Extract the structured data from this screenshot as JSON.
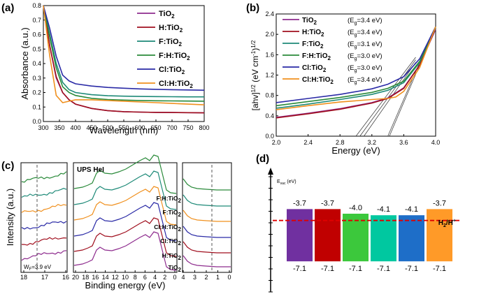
{
  "colors": {
    "TiO2": "#8e2c8e",
    "H_TiO2": "#a00f1e",
    "F_TiO2": "#1e8a78",
    "FH_TiO2": "#2a8a3a",
    "Cl_TiO2": "#2a2aa6",
    "ClH_TiO2": "#f0901e",
    "bar_purple": "#7030a0",
    "bar_red": "#c00000",
    "bar_green": "#3cc83c",
    "bar_teal": "#00c8a0",
    "bar_blue": "#1e6ec8",
    "bar_orange": "#ff9a28",
    "redox_line": "#e00000"
  },
  "panel_labels": {
    "a": "(a)",
    "b": "(b)",
    "c": "(c)",
    "d": "(d)"
  },
  "panel_a": {
    "chart_data": {
      "type": "line",
      "xlabel": "Wavelength (nm)",
      "ylabel": "Absorbance (a.u.)",
      "xlim": [
        300,
        800
      ],
      "ylim": [
        0,
        0.8
      ],
      "x_ticks": [
        "300",
        "350",
        "400",
        "450",
        "500",
        "550",
        "600",
        "650",
        "700",
        "750",
        "800"
      ],
      "y_ticks": [
        "0.0",
        "0.1",
        "0.2",
        "0.3",
        "0.4",
        "0.5",
        "0.6",
        "0.7",
        "0.8"
      ],
      "series": [
        {
          "name": "TiO2",
          "label_base": "TiO",
          "label_sub": "2",
          "color_key": "TiO2",
          "x": [
            300,
            320,
            340,
            360,
            380,
            400,
            450,
            500,
            550,
            600,
            650,
            700,
            750,
            800
          ],
          "y": [
            0.8,
            0.52,
            0.3,
            0.2,
            0.15,
            0.12,
            0.09,
            0.075,
            0.068,
            0.065,
            0.063,
            0.062,
            0.061,
            0.06
          ]
        },
        {
          "name": "H:TiO2",
          "label_base": "H:TiO",
          "label_sub": "2",
          "color_key": "H_TiO2",
          "x": [
            300,
            320,
            340,
            360,
            380,
            400,
            450,
            500,
            550,
            600,
            650,
            700,
            750,
            800
          ],
          "y": [
            0.8,
            0.52,
            0.31,
            0.2,
            0.15,
            0.12,
            0.09,
            0.075,
            0.068,
            0.065,
            0.063,
            0.062,
            0.061,
            0.06
          ]
        },
        {
          "name": "F:TiO2",
          "label_base": "F:TiO",
          "label_sub": "2",
          "color_key": "F_TiO2",
          "x": [
            300,
            320,
            340,
            360,
            380,
            400,
            450,
            500,
            550,
            600,
            650,
            700,
            750,
            800
          ],
          "y": [
            0.8,
            0.6,
            0.4,
            0.27,
            0.22,
            0.2,
            0.185,
            0.178,
            0.175,
            0.173,
            0.172,
            0.171,
            0.17,
            0.17
          ]
        },
        {
          "name": "F:H:TiO2",
          "label_base": "F:H:TiO",
          "label_sub": "2",
          "color_key": "FH_TiO2",
          "x": [
            300,
            320,
            340,
            360,
            380,
            400,
            450,
            500,
            550,
            600,
            650,
            700,
            750,
            800
          ],
          "y": [
            0.8,
            0.58,
            0.37,
            0.24,
            0.2,
            0.18,
            0.16,
            0.152,
            0.148,
            0.145,
            0.143,
            0.142,
            0.141,
            0.14
          ]
        },
        {
          "name": "Cl:TiO2",
          "label_base": "Cl:TiO",
          "label_sub": "2",
          "color_key": "Cl_TiO2",
          "x": [
            300,
            320,
            340,
            360,
            380,
            400,
            450,
            500,
            550,
            600,
            650,
            700,
            750,
            800
          ],
          "y": [
            0.8,
            0.64,
            0.45,
            0.32,
            0.28,
            0.26,
            0.245,
            0.235,
            0.23,
            0.225,
            0.222,
            0.22,
            0.218,
            0.216
          ]
        },
        {
          "name": "Cl:H:TiO2",
          "label_base": "Cl:H:TiO",
          "label_sub": "2",
          "color_key": "ClH_TiO2",
          "x": [
            300,
            320,
            340,
            360,
            380,
            400,
            450,
            500,
            550,
            600,
            650,
            700,
            750,
            800
          ],
          "y": [
            0.8,
            0.45,
            0.18,
            0.13,
            0.14,
            0.15,
            0.15,
            0.145,
            0.14,
            0.135,
            0.13,
            0.125,
            0.12,
            0.115
          ]
        }
      ]
    }
  },
  "panel_b": {
    "chart_data": {
      "type": "line",
      "xlabel": "Energy (eV)",
      "ylabel_base": "[ahv]",
      "ylabel_sup": "1/2",
      "ylabel_unit": " (eV cm",
      "ylabel_unit_sup": "-1",
      "ylabel_close": ")",
      "ylabel_close_sup": "1/2",
      "xlim": [
        2.0,
        4.0
      ],
      "ylim": [
        0,
        2.4
      ],
      "x_ticks": [
        "2.0",
        "2.4",
        "2.8",
        "3.2",
        "3.6",
        "4.0"
      ],
      "y_ticks": [
        "0.0",
        "0.4",
        "0.8",
        "1.2",
        "1.6",
        "2.0",
        "2.4"
      ],
      "series": [
        {
          "name": "TiO2",
          "label_base": "TiO",
          "label_sub": "2",
          "eg_open": "(E",
          "eg_sub": "g",
          "eg_text": "=3.4 eV)",
          "color_key": "TiO2",
          "x": [
            2.0,
            2.4,
            2.8,
            3.2,
            3.4,
            3.6,
            3.8,
            4.0
          ],
          "y": [
            0.37,
            0.45,
            0.54,
            0.66,
            0.75,
            0.95,
            1.4,
            2.1
          ]
        },
        {
          "name": "H:TiO2",
          "label_base": "H:TiO",
          "label_sub": "2",
          "eg_open": "(E",
          "eg_sub": "g",
          "eg_text": "=3.4 eV)",
          "color_key": "H_TiO2",
          "x": [
            2.0,
            2.4,
            2.8,
            3.2,
            3.4,
            3.6,
            3.8,
            4.0
          ],
          "y": [
            0.36,
            0.44,
            0.53,
            0.65,
            0.74,
            0.94,
            1.4,
            2.12
          ]
        },
        {
          "name": "F:TiO2",
          "label_base": "F:TiO",
          "label_sub": "2",
          "eg_open": "(E",
          "eg_sub": "g",
          "eg_text": "=3.1 eV)",
          "color_key": "F_TiO2",
          "x": [
            2.0,
            2.4,
            2.8,
            3.2,
            3.4,
            3.6,
            3.8,
            4.0
          ],
          "y": [
            0.55,
            0.63,
            0.72,
            0.82,
            0.9,
            1.05,
            1.45,
            2.13
          ]
        },
        {
          "name": "F:H:TiO2",
          "label_base": "F:H:TiO",
          "label_sub": "2",
          "eg_open": "(E",
          "eg_sub": "g",
          "eg_text": "=3.0 eV)",
          "color_key": "FH_TiO2",
          "x": [
            2.0,
            2.4,
            2.8,
            3.2,
            3.4,
            3.6,
            3.8,
            4.0
          ],
          "y": [
            0.6,
            0.68,
            0.76,
            0.86,
            0.94,
            1.08,
            1.47,
            2.14
          ]
        },
        {
          "name": "Cl:TiO2",
          "label_base": "Cl:TiO",
          "label_sub": "2",
          "eg_open": "(E",
          "eg_sub": "g",
          "eg_text": "=3.0 eV)",
          "color_key": "Cl_TiO2",
          "x": [
            2.0,
            2.4,
            2.8,
            3.2,
            3.4,
            3.6,
            3.8,
            4.0
          ],
          "y": [
            0.66,
            0.74,
            0.82,
            0.93,
            1.02,
            1.17,
            1.52,
            2.15
          ]
        },
        {
          "name": "Cl:H:TiO2",
          "label_base": "Cl:H:TiO",
          "label_sub": "2",
          "eg_open": "(E",
          "eg_sub": "g",
          "eg_text": "=3.4 eV)",
          "color_key": "ClH_TiO2",
          "x": [
            2.0,
            2.4,
            2.8,
            3.2,
            3.4,
            3.5,
            3.6,
            3.8,
            4.0
          ],
          "y": [
            0.52,
            0.6,
            0.67,
            0.72,
            0.74,
            0.77,
            0.88,
            1.35,
            2.15
          ]
        }
      ],
      "tangent_lines": [
        {
          "x": [
            3.0,
            3.75
          ],
          "y": [
            0.0,
            1.55
          ]
        },
        {
          "x": [
            3.05,
            3.75
          ],
          "y": [
            0.0,
            1.5
          ]
        },
        {
          "x": [
            3.1,
            3.75
          ],
          "y": [
            0.0,
            1.45
          ]
        },
        {
          "x": [
            3.4,
            3.8
          ],
          "y": [
            0.0,
            1.45
          ]
        },
        {
          "x": [
            3.42,
            3.8
          ],
          "y": [
            0.0,
            1.4
          ]
        }
      ]
    }
  },
  "panel_c": {
    "chart_data": {
      "type": "line",
      "title": "UPS HeI",
      "xlabel": "Binding energy (eV)",
      "ylabel": "Intensity (a.u.)",
      "wf_label": "W",
      "wf_sub": "F",
      "wf_text": "=3.9 eV",
      "left_ticks": [
        "18",
        "17",
        "16"
      ],
      "mid_ticks": [
        "20",
        "18",
        "16",
        "14",
        "12",
        "10",
        "8",
        "6",
        "4",
        "2",
        "0"
      ],
      "right_ticks": [
        "4",
        "3",
        "2",
        "1",
        "0"
      ],
      "series_labels": [
        {
          "base": "F:H:TiO",
          "sub": "2",
          "color_key": "FH_TiO2"
        },
        {
          "base": "F:TiO",
          "sub": "2",
          "color_key": "F_TiO2"
        },
        {
          "base": "Cl:H:TiO",
          "sub": "2",
          "color_key": "ClH_TiO2"
        },
        {
          "base": "Cl:TiO",
          "sub": "2",
          "color_key": "Cl_TiO2"
        },
        {
          "base": "H:TiO",
          "sub": "2",
          "color_key": "H_TiO2"
        },
        {
          "base": "TiO",
          "sub": "2",
          "color_key": "TiO2"
        }
      ]
    }
  },
  "panel_d": {
    "axis_label_base": "E",
    "axis_label_sub": "vac",
    "axis_label_unit": " (eV)",
    "redox_base": "H",
    "redox_sub": "2",
    "redox_mid": "/H",
    "redox_sup": "+",
    "chart_data": {
      "type": "bar",
      "cb_values": [
        "-3.7",
        "-3.7",
        "-4.0",
        "-4.1",
        "-4.1",
        "-3.7"
      ],
      "vb_values": [
        "-7.1",
        "-7.1",
        "-7.1",
        "-7.1",
        "-7.1",
        "-7.1"
      ],
      "cb_numeric": [
        -3.7,
        -3.7,
        -4.0,
        -4.1,
        -4.1,
        -3.7
      ],
      "vb_numeric": [
        -7.1,
        -7.1,
        -7.1,
        -7.1,
        -7.1,
        -7.1
      ],
      "bar_colors": [
        "bar_purple",
        "bar_red",
        "bar_green",
        "bar_teal",
        "bar_blue",
        "bar_orange"
      ],
      "redox_level": -4.44
    }
  }
}
